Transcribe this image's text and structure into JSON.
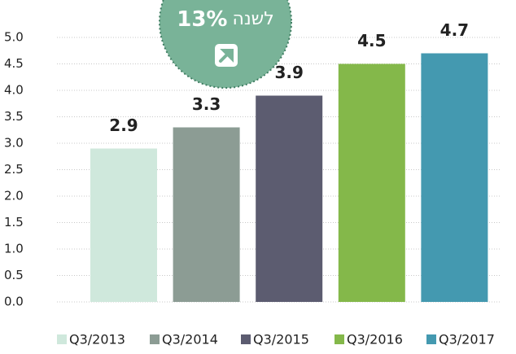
{
  "chart_data": {
    "type": "bar",
    "categories": [
      "Q3/2013",
      "Q3/2014",
      "Q3/2015",
      "Q3/2016",
      "Q3/2017"
    ],
    "values": [
      2.9,
      3.3,
      3.9,
      4.5,
      4.7
    ],
    "colors": [
      "#cfe8dc",
      "#8c9c94",
      "#5c5c70",
      "#84b84a",
      "#4499b0"
    ],
    "ylim": [
      0,
      5
    ],
    "yticks": [
      {
        "value": 0,
        "label": "0.0"
      },
      0.5,
      {
        "value": 1,
        "label": "1.0"
      },
      1.5,
      {
        "value": 2,
        "label": "2.0"
      },
      2.5,
      {
        "value": 3,
        "label": "3.0"
      },
      3.5,
      {
        "value": 4,
        "label": "4.0"
      },
      4.5,
      {
        "value": 5,
        "label": "5.0"
      }
    ],
    "grid": true,
    "annotation": {
      "value": "13%",
      "text": "לשנה"
    },
    "legend": "bottom"
  }
}
